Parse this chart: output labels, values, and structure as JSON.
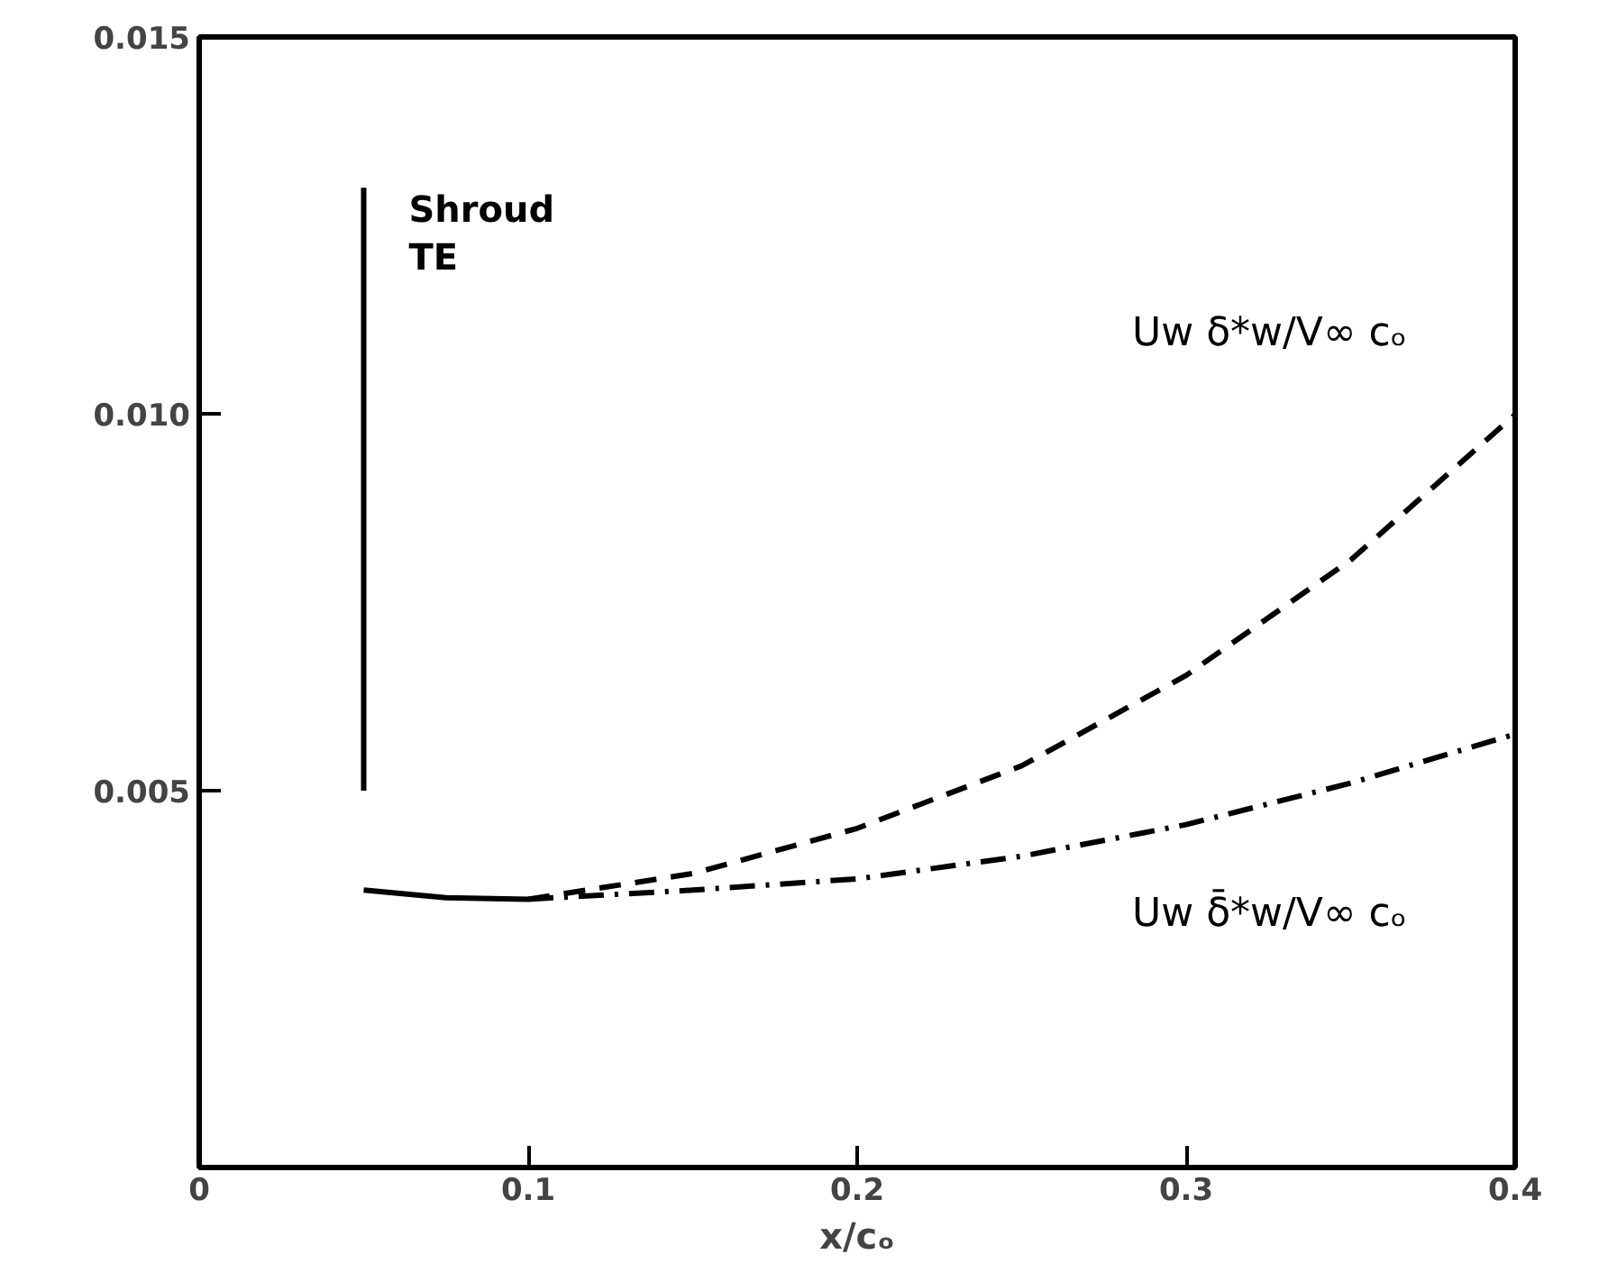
{
  "chart_data": {
    "type": "line",
    "xlabel": "x/cₒ",
    "xlim": [
      0,
      0.4
    ],
    "ylim": [
      0,
      0.015
    ],
    "xticks": [
      0,
      0.1,
      0.2,
      0.3,
      0.4
    ],
    "yticks": [
      0.005,
      {
        "value": 0.01,
        "label": "0.010"
      },
      0.015
    ],
    "grid": false,
    "series": [
      {
        "color": "#000000",
        "line_style": "solid",
        "x": [
          0.05,
          0.075,
          0.1
        ],
        "values": [
          0.00368,
          0.00358,
          0.00356
        ]
      },
      {
        "name": "Uw δ*w/V∞ cₒ",
        "color": "#000000",
        "line_style": "dashed",
        "x": [
          0.1,
          0.15,
          0.2,
          0.25,
          0.3,
          0.35,
          0.4
        ],
        "values": [
          0.00356,
          0.0039,
          0.0045,
          0.00533,
          0.00653,
          0.00806,
          0.00999
        ]
      },
      {
        "name": "Uw δ̄*w/V∞ cₒ",
        "color": "#000000",
        "line_style": "dashdot",
        "x": [
          0.1,
          0.15,
          0.2,
          0.25,
          0.3,
          0.35,
          0.4
        ],
        "values": [
          0.00356,
          0.00368,
          0.00383,
          0.00413,
          0.00455,
          0.0051,
          0.00575
        ]
      },
      {
        "color": "#000000",
        "line_style": "solid",
        "x": [
          0.05,
          0.05
        ],
        "values": [
          0.005,
          0.013
        ]
      }
    ],
    "annotations": [
      {
        "text": "Shroud\nTE",
        "x": 0.05,
        "y": 0.013
      }
    ]
  }
}
